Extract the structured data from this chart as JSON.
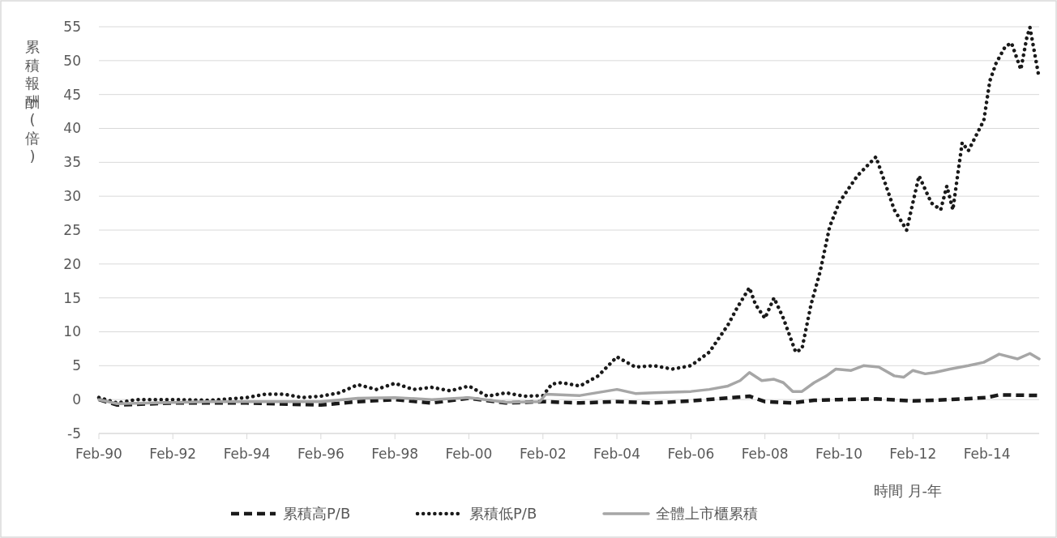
{
  "chart_data": {
    "type": "line",
    "xlabel": "時間 月-年",
    "ylabel": "累積報酬(倍)",
    "ylim": [
      -5,
      55
    ],
    "yticks": [
      -5,
      0,
      5,
      10,
      15,
      20,
      25,
      30,
      35,
      40,
      45,
      50,
      55
    ],
    "xlim": [
      "1990-02",
      "2015-07"
    ],
    "xticks": [
      {
        "value": "1990-02",
        "label": "Feb-90"
      },
      {
        "value": "1992-02",
        "label": "Feb-92"
      },
      {
        "value": "1994-02",
        "label": "Feb-94"
      },
      {
        "value": "1996-02",
        "label": "Feb-96"
      },
      {
        "value": "1998-02",
        "label": "Feb-98"
      },
      {
        "value": "2000-02",
        "label": "Feb-00"
      },
      {
        "value": "2002-02",
        "label": "Feb-02"
      },
      {
        "value": "2004-02",
        "label": "Feb-04"
      },
      {
        "value": "2006-02",
        "label": "Feb-06"
      },
      {
        "value": "2008-02",
        "label": "Feb-08"
      },
      {
        "value": "2010-02",
        "label": "Feb-10"
      },
      {
        "value": "2012-02",
        "label": "Feb-12"
      },
      {
        "value": "2014-02",
        "label": "Feb-14"
      }
    ],
    "grid": "y",
    "legend": "bottom",
    "marker": "none",
    "series": [
      {
        "name": "累積高P/B",
        "color": "#1a1a1a",
        "line_style": "dashed",
        "x": [
          "1990-02",
          "1990-08",
          "1992-02",
          "1994-02",
          "1996-02",
          "1997-02",
          "1998-02",
          "1999-02",
          "2000-02",
          "2001-02",
          "2002-02",
          "2003-02",
          "2004-02",
          "2005-02",
          "2006-02",
          "2007-09",
          "2008-02",
          "2008-11",
          "2009-06",
          "2010-02",
          "2011-02",
          "2012-02",
          "2013-02",
          "2014-02",
          "2014-06",
          "2015-07"
        ],
        "values": [
          0,
          -0.8,
          -0.5,
          -0.5,
          -0.8,
          -0.3,
          0,
          -0.5,
          0.2,
          -0.5,
          -0.3,
          -0.5,
          -0.3,
          -0.5,
          -0.2,
          0.5,
          -0.3,
          -0.5,
          -0.1,
          0,
          0.1,
          -0.2,
          0,
          0.3,
          0.7,
          0.6
        ]
      },
      {
        "name": "累積低P/B",
        "color": "#1a1a1a",
        "line_style": "dotted",
        "x": [
          "1990-02",
          "1990-08",
          "1991-02",
          "1992-02",
          "1993-02",
          "1994-02",
          "1994-08",
          "1995-02",
          "1995-08",
          "1996-02",
          "1996-08",
          "1997-02",
          "1997-08",
          "1998-02",
          "1998-08",
          "1999-02",
          "1999-08",
          "2000-02",
          "2000-08",
          "2001-02",
          "2001-08",
          "2002-02",
          "2002-05",
          "2002-08",
          "2003-02",
          "2003-08",
          "2004-02",
          "2004-08",
          "2005-02",
          "2005-08",
          "2006-02",
          "2006-08",
          "2007-02",
          "2007-05",
          "2007-09",
          "2007-11",
          "2008-02",
          "2008-05",
          "2008-08",
          "2008-12",
          "2009-02",
          "2009-05",
          "2009-08",
          "2009-11",
          "2010-02",
          "2010-05",
          "2010-08",
          "2011-02",
          "2011-05",
          "2011-08",
          "2011-12",
          "2012-04",
          "2012-08",
          "2012-11",
          "2013-01",
          "2013-03",
          "2013-06",
          "2013-08",
          "2014-01",
          "2014-03",
          "2014-05",
          "2014-08",
          "2014-10",
          "2015-01",
          "2015-03",
          "2015-04",
          "2015-07"
        ],
        "values": [
          0.3,
          -0.5,
          0,
          0,
          -0.1,
          0.3,
          0.8,
          0.8,
          0.3,
          0.5,
          1,
          2.2,
          1.5,
          2.4,
          1.5,
          1.8,
          1.3,
          2,
          0.5,
          1,
          0.5,
          0.6,
          2.3,
          2.5,
          2,
          3.5,
          6.3,
          4.8,
          5,
          4.5,
          5,
          7,
          11,
          13.5,
          16.5,
          14,
          12,
          15,
          12,
          7,
          7.5,
          14,
          19,
          25.5,
          29,
          31,
          33,
          35.8,
          32,
          28,
          25,
          33,
          29,
          28,
          31.5,
          28,
          37.9,
          36.7,
          41.2,
          47,
          49.6,
          52.1,
          52.6,
          48.7,
          53.4,
          54.9,
          47.4
        ]
      },
      {
        "name": "全體上市櫃累積",
        "color": "#a6a6a6",
        "line_style": "solid",
        "x": [
          "1990-02",
          "1990-08",
          "1993-02",
          "1996-02",
          "1997-02",
          "1998-02",
          "1999-02",
          "2000-02",
          "2001-02",
          "2002-01",
          "2002-03",
          "2003-02",
          "2004-02",
          "2004-08",
          "2005-02",
          "2006-02",
          "2006-08",
          "2007-02",
          "2007-06",
          "2007-09",
          "2008-01",
          "2008-05",
          "2008-08",
          "2008-11",
          "2009-02",
          "2009-06",
          "2009-10",
          "2010-01",
          "2010-06",
          "2010-10",
          "2011-03",
          "2011-08",
          "2011-11",
          "2012-02",
          "2012-06",
          "2012-09",
          "2013-02",
          "2013-08",
          "2014-01",
          "2014-06",
          "2014-12",
          "2015-04",
          "2015-07"
        ],
        "values": [
          0,
          -0.6,
          -0.3,
          -0.3,
          0.2,
          0.3,
          0,
          0.3,
          -0.4,
          -0.3,
          0.8,
          0.6,
          1.5,
          0.9,
          1,
          1.2,
          1.5,
          2,
          2.8,
          4,
          2.8,
          3,
          2.5,
          1.2,
          1.2,
          2.5,
          3.5,
          4.5,
          4.3,
          5,
          4.8,
          3.5,
          3.3,
          4.3,
          3.8,
          4,
          4.5,
          5,
          5.5,
          6.7,
          6,
          6.8,
          6
        ]
      }
    ]
  }
}
